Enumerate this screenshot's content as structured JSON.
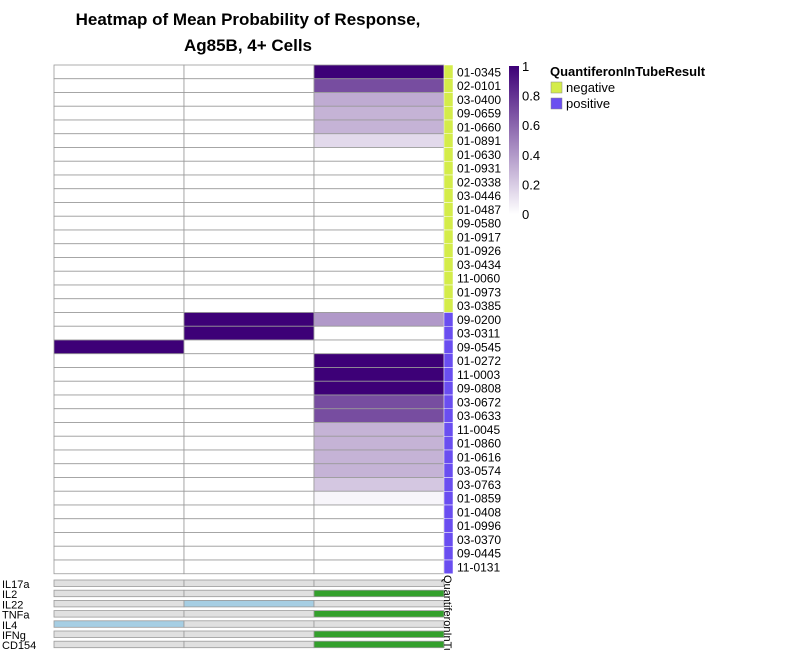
{
  "chart_data": {
    "type": "heatmap",
    "title_lines": [
      "Heatmap of Mean Probability of Response,",
      "Ag85B, 4+ Cells"
    ],
    "columns": [
      "",
      "",
      ""
    ],
    "rows": [
      {
        "id": "01-0345",
        "group": "negative",
        "values": [
          0,
          0,
          1.0
        ]
      },
      {
        "id": "02-0101",
        "group": "negative",
        "values": [
          0,
          0,
          0.7
        ]
      },
      {
        "id": "03-0400",
        "group": "negative",
        "values": [
          0,
          0,
          0.33
        ]
      },
      {
        "id": "09-0659",
        "group": "negative",
        "values": [
          0,
          0,
          0.3
        ]
      },
      {
        "id": "01-0660",
        "group": "negative",
        "values": [
          0,
          0,
          0.3
        ]
      },
      {
        "id": "01-0891",
        "group": "negative",
        "values": [
          0,
          0,
          0.15
        ]
      },
      {
        "id": "01-0630",
        "group": "negative",
        "values": [
          0,
          0,
          0
        ]
      },
      {
        "id": "01-0931",
        "group": "negative",
        "values": [
          0,
          0,
          0
        ]
      },
      {
        "id": "02-0338",
        "group": "negative",
        "values": [
          0,
          0,
          0
        ]
      },
      {
        "id": "03-0446",
        "group": "negative",
        "values": [
          0,
          0,
          0
        ]
      },
      {
        "id": "01-0487",
        "group": "negative",
        "values": [
          0,
          0,
          0
        ]
      },
      {
        "id": "09-0580",
        "group": "negative",
        "values": [
          0,
          0,
          0
        ]
      },
      {
        "id": "01-0917",
        "group": "negative",
        "values": [
          0,
          0,
          0
        ]
      },
      {
        "id": "01-0926",
        "group": "negative",
        "values": [
          0,
          0,
          0
        ]
      },
      {
        "id": "03-0434",
        "group": "negative",
        "values": [
          0,
          0,
          0
        ]
      },
      {
        "id": "11-0060",
        "group": "negative",
        "values": [
          0,
          0,
          0
        ]
      },
      {
        "id": "01-0973",
        "group": "negative",
        "values": [
          0,
          0,
          0
        ]
      },
      {
        "id": "03-0385",
        "group": "negative",
        "values": [
          0,
          0,
          0
        ]
      },
      {
        "id": "09-0200",
        "group": "positive",
        "values": [
          0,
          1.0,
          0.4
        ]
      },
      {
        "id": "03-0311",
        "group": "positive",
        "values": [
          0,
          1.0,
          0
        ]
      },
      {
        "id": "09-0545",
        "group": "positive",
        "values": [
          1.0,
          0,
          0
        ]
      },
      {
        "id": "01-0272",
        "group": "positive",
        "values": [
          0,
          0,
          1.0
        ]
      },
      {
        "id": "11-0003",
        "group": "positive",
        "values": [
          0,
          0,
          1.0
        ]
      },
      {
        "id": "09-0808",
        "group": "positive",
        "values": [
          0,
          0,
          1.0
        ]
      },
      {
        "id": "03-0672",
        "group": "positive",
        "values": [
          0,
          0,
          0.7
        ]
      },
      {
        "id": "03-0633",
        "group": "positive",
        "values": [
          0,
          0,
          0.7
        ]
      },
      {
        "id": "11-0045",
        "group": "positive",
        "values": [
          0,
          0,
          0.3
        ]
      },
      {
        "id": "01-0860",
        "group": "positive",
        "values": [
          0,
          0,
          0.3
        ]
      },
      {
        "id": "01-0616",
        "group": "positive",
        "values": [
          0,
          0,
          0.3
        ]
      },
      {
        "id": "03-0574",
        "group": "positive",
        "values": [
          0,
          0,
          0.3
        ]
      },
      {
        "id": "03-0763",
        "group": "positive",
        "values": [
          0,
          0,
          0.22
        ]
      },
      {
        "id": "01-0859",
        "group": "positive",
        "values": [
          0,
          0,
          0.04
        ]
      },
      {
        "id": "01-0408",
        "group": "positive",
        "values": [
          0,
          0,
          0
        ]
      },
      {
        "id": "01-0996",
        "group": "positive",
        "values": [
          0,
          0,
          0
        ]
      },
      {
        "id": "03-0370",
        "group": "positive",
        "values": [
          0,
          0,
          0
        ]
      },
      {
        "id": "09-0445",
        "group": "positive",
        "values": [
          0,
          0,
          0
        ]
      },
      {
        "id": "11-0131",
        "group": "positive",
        "values": [
          0,
          0,
          0
        ]
      }
    ],
    "row_annotation": {
      "name": "QuantiferonInTubeResult",
      "axis_label": "QuantiferonInTu",
      "levels": [
        {
          "label": "negative",
          "color": "#d4ec4a"
        },
        {
          "label": "positive",
          "color": "#6a4ef0"
        }
      ]
    },
    "column_annotations": [
      {
        "name": "IL17a",
        "values": [
          "off",
          "off",
          "off"
        ]
      },
      {
        "name": "IL2",
        "values": [
          "off",
          "off",
          "on"
        ]
      },
      {
        "name": "IL22",
        "values": [
          "off",
          "on",
          "off"
        ]
      },
      {
        "name": "TNFa",
        "values": [
          "off",
          "off",
          "on"
        ]
      },
      {
        "name": "IL4",
        "values": [
          "on",
          "off",
          "off"
        ]
      },
      {
        "name": "IFNg",
        "values": [
          "off",
          "off",
          "on"
        ]
      },
      {
        "name": "CD154",
        "values": [
          "off",
          "off",
          "on"
        ]
      }
    ],
    "annotation_colors": {
      "IL2": "#33a02c",
      "TNFa": "#33a02c",
      "IFNg": "#33a02c",
      "CD154": "#33a02c",
      "IL22": "#a6cee3",
      "IL4": "#a6cee3",
      "IL17a": "#a6cee3",
      "off": "#e0e0e0"
    },
    "color_scale": {
      "ticks": [
        "1",
        "0.8",
        "0.6",
        "0.4",
        "0.2",
        "0"
      ],
      "range": [
        0,
        1
      ],
      "low_color": "#ffffff",
      "high_color": "#3d0077"
    }
  }
}
